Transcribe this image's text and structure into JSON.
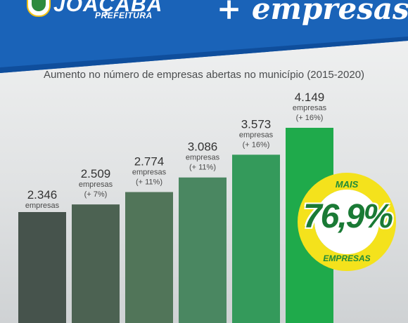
{
  "header": {
    "city": "JOAÇABA",
    "prefeitura": "PREFEITURA",
    "headline": "+ empresas",
    "colors": {
      "blue": "#1a63b8",
      "blue_dark": "#0f4e9c"
    }
  },
  "badge": {
    "top_label": "MAIS",
    "percent": "76,9%",
    "bottom_label": "EMPRESAS",
    "ring_color": "#f4e21c"
  },
  "chart_data": {
    "type": "bar",
    "title": "Aumento no número de empresas abertas no município (2015-2020)",
    "values": [
      2346,
      2509,
      2774,
      3086,
      3573,
      4149
    ],
    "value_labels": [
      "2.346",
      "2.509",
      "2.774",
      "3.086",
      "3.573",
      "4.149"
    ],
    "unit_label": "empresas",
    "growth_labels": [
      "",
      "(+ 7%)",
      "(+ 11%)",
      "(+ 11%)",
      "(+ 16%)",
      "(+ 16%)"
    ],
    "colors": [
      "#46534c",
      "#4c6252",
      "#517559",
      "#4a8761",
      "#349a5b",
      "#1faa4b"
    ],
    "grid": false,
    "legend": "none"
  }
}
